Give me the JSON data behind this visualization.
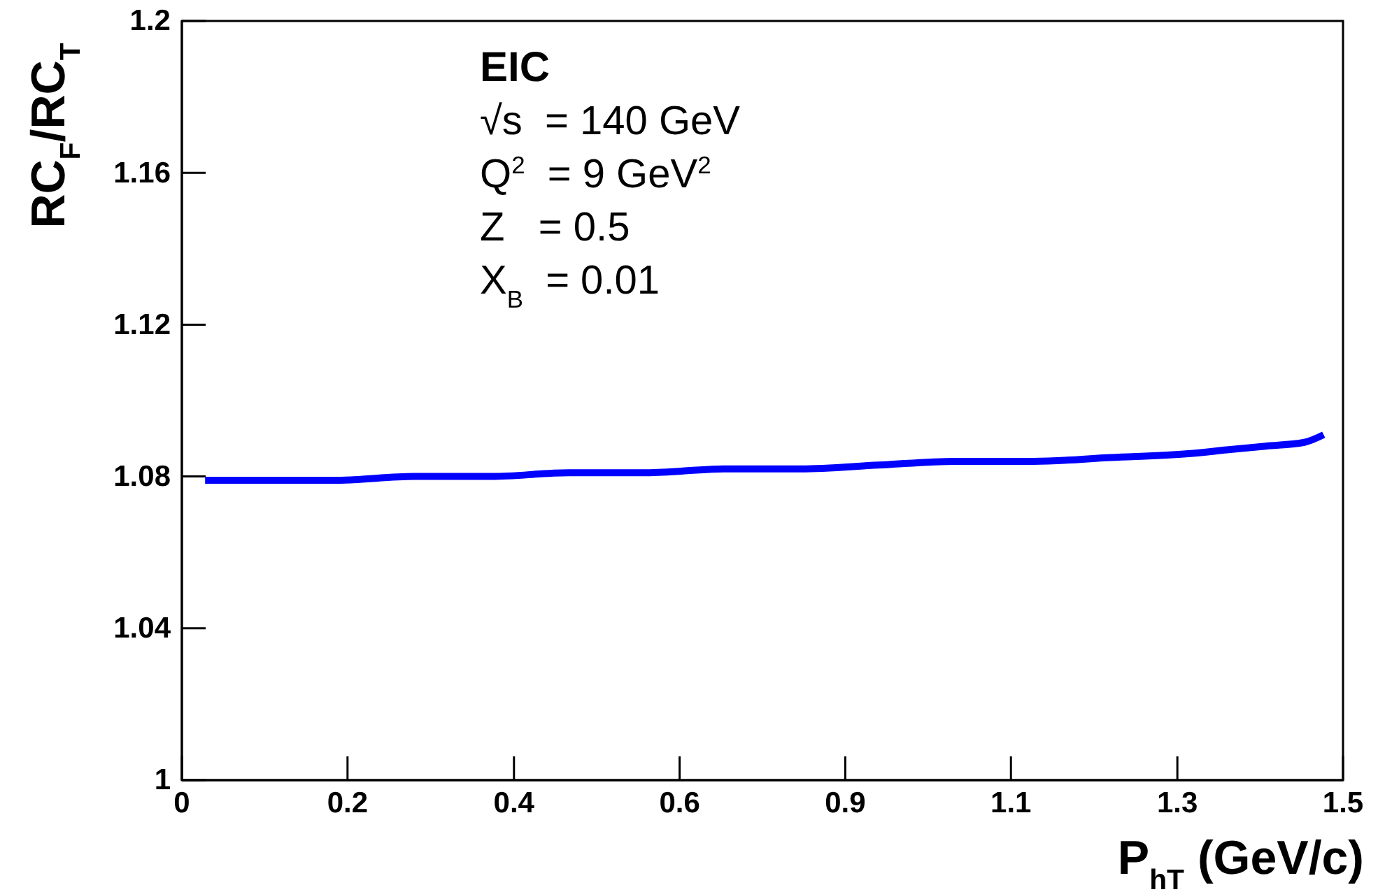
{
  "chart_data": {
    "type": "line",
    "xlabel": "P$_{hT}$ (GeV/c)",
    "ylabel": "RC$_{F}$/RC$_{T}$",
    "annotations": [
      "EIC",
      "√s  = 140 GeV",
      "Q$^{2}$  = 9 GeV$^{2}$",
      "Z   = 0.5",
      "X$_{B}$  = 0.01"
    ],
    "series": [
      {
        "color": "#0000ff",
        "x": [
          0.03,
          0.1,
          0.2,
          0.3,
          0.4,
          0.5,
          0.6,
          0.7,
          0.8,
          0.9,
          1.0,
          1.1,
          1.2,
          1.3,
          1.35,
          1.4,
          1.45,
          1.475
        ],
        "values": [
          1.079,
          1.079,
          1.079,
          1.08,
          1.08,
          1.081,
          1.081,
          1.082,
          1.082,
          1.083,
          1.084,
          1.084,
          1.085,
          1.086,
          1.087,
          1.088,
          1.089,
          1.091
        ]
      }
    ],
    "xlim": [
      0,
      1.5
    ],
    "ylim": [
      1,
      1.2
    ],
    "xticks": [
      0,
      {
        "value": 0.214,
        "label": "0.2"
      },
      {
        "value": 0.429,
        "label": "0.4"
      },
      {
        "value": 0.643,
        "label": "0.6"
      },
      {
        "value": 0.857,
        "label": "0.9"
      },
      {
        "value": 1.071,
        "label": "1.1"
      },
      {
        "value": 1.286,
        "label": "1.3"
      },
      1.5
    ],
    "yticks": [
      1,
      1.04,
      1.08,
      1.12,
      1.16,
      1.2
    ],
    "grid": false,
    "line_style": "solid",
    "marker": "none"
  }
}
